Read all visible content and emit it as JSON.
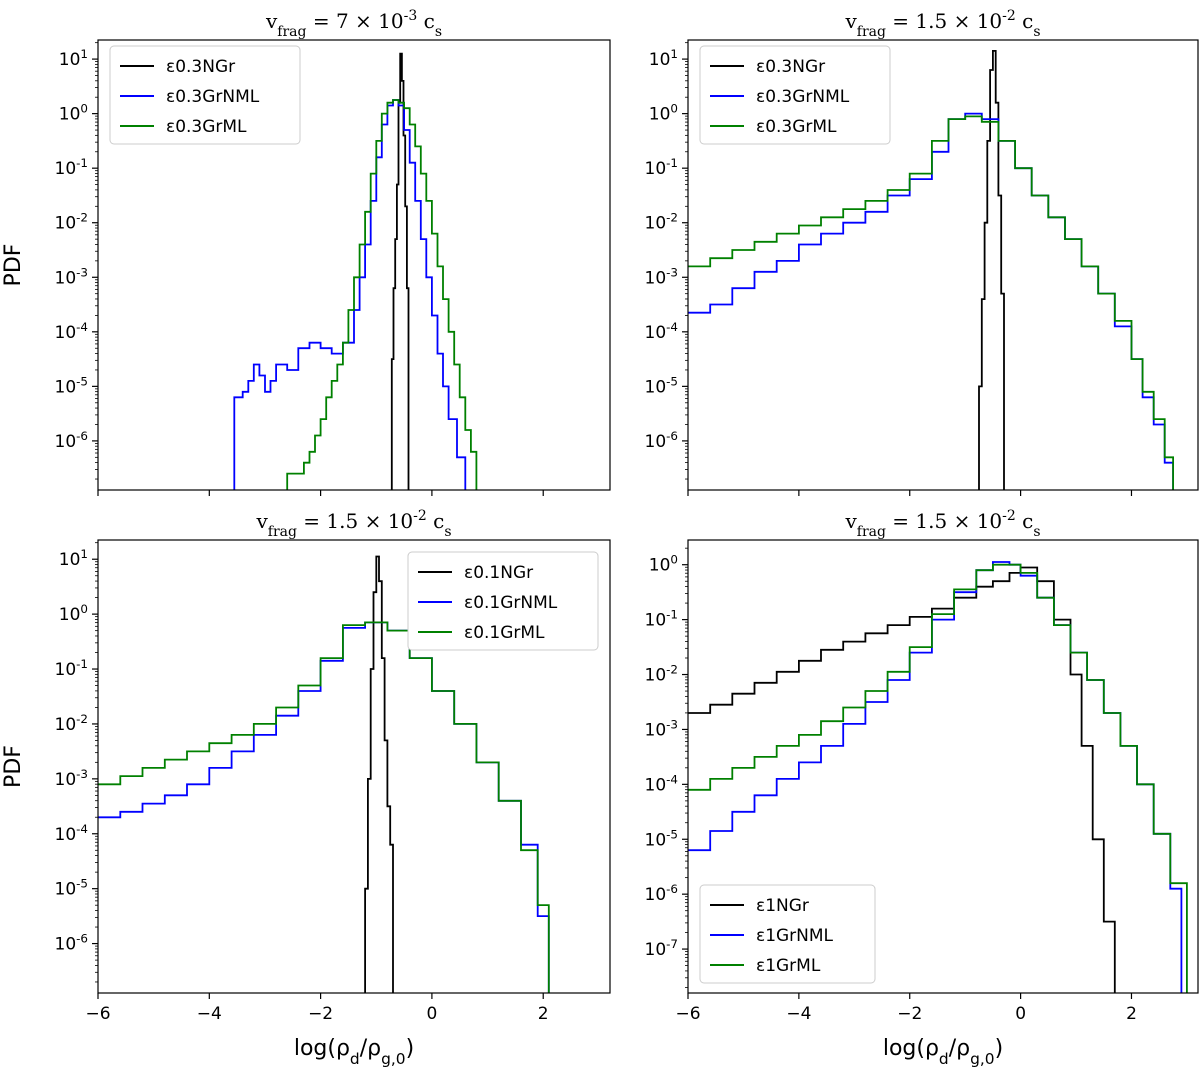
{
  "colors": {
    "black": "#000000",
    "blue": "#0000ff",
    "green": "#008000"
  },
  "chart_data": [
    {
      "type": "line",
      "title": "v_frag = 7 × 10^-3 c_s",
      "xlabel": "",
      "ylabel": "PDF",
      "yscale": "log",
      "xlim": [
        -6,
        3.2
      ],
      "ylim_exp": [
        -6.9,
        1.35
      ],
      "x_ticks": [
        -6,
        -4,
        -2,
        0,
        2
      ],
      "y_tick_labels": [
        "10^1",
        "10^0",
        "10^-1",
        "10^-2",
        "10^-3",
        "10^-4",
        "10^-5",
        "10^-6"
      ],
      "legend_position": "top-left",
      "series": [
        {
          "name": "ε0.3NGr",
          "color": "#000000",
          "x": [
            -0.72,
            -0.72,
            -0.69,
            -0.66,
            -0.63,
            -0.6,
            -0.57,
            -0.54,
            -0.51,
            -0.48,
            -0.45,
            -0.42,
            -0.42
          ],
          "y_exp": [
            -7,
            -4.5,
            -3.2,
            -2.3,
            -1.3,
            0.2,
            1.1,
            0.6,
            -0.4,
            -1.7,
            -3.2,
            -4.7,
            -7
          ]
        },
        {
          "name": "ε0.3GrNML",
          "color": "#0000ff",
          "x": [
            -3.55,
            -3.55,
            -3.4,
            -3.3,
            -3.2,
            -3.1,
            -3,
            -2.9,
            -2.8,
            -2.6,
            -2.4,
            -2.2,
            -2,
            -1.8,
            -1.6,
            -1.4,
            -1.3,
            -1.2,
            -1.1,
            -1,
            -0.9,
            -0.8,
            -0.7,
            -0.6,
            -0.5,
            -0.4,
            -0.3,
            -0.2,
            -0.1,
            0,
            0.1,
            0.2,
            0.3,
            0.45,
            0.6,
            0.6
          ],
          "y_exp": [
            -7,
            -5.2,
            -5.1,
            -4.9,
            -4.6,
            -4.8,
            -5.1,
            -4.9,
            -4.6,
            -4.7,
            -4.3,
            -4.2,
            -4.3,
            -4.4,
            -4.2,
            -3.6,
            -3,
            -2.4,
            -1.6,
            -0.8,
            -0.2,
            0.15,
            0.25,
            0.15,
            -0.3,
            -0.9,
            -1.6,
            -2.3,
            -3,
            -3.7,
            -4.4,
            -5,
            -5.6,
            -6.3,
            -7,
            -7
          ]
        },
        {
          "name": "ε0.3GrML",
          "color": "#008000",
          "x": [
            -2.6,
            -2.6,
            -2.4,
            -2.3,
            -2.2,
            -2.1,
            -2,
            -1.9,
            -1.8,
            -1.7,
            -1.6,
            -1.5,
            -1.4,
            -1.3,
            -1.2,
            -1.1,
            -1,
            -0.9,
            -0.8,
            -0.7,
            -0.6,
            -0.5,
            -0.4,
            -0.3,
            -0.2,
            -0.1,
            0,
            0.1,
            0.2,
            0.3,
            0.4,
            0.5,
            0.6,
            0.7,
            0.8,
            0.8
          ],
          "y_exp": [
            -7,
            -6.6,
            -6.6,
            -6.4,
            -6.2,
            -5.9,
            -5.6,
            -5.2,
            -4.9,
            -4.6,
            -4.2,
            -3.6,
            -3,
            -2.4,
            -1.8,
            -1.1,
            -0.5,
            0,
            0.2,
            0.25,
            0.2,
            0.1,
            -0.2,
            -0.6,
            -1.1,
            -1.6,
            -2.2,
            -2.8,
            -3.4,
            -4,
            -4.6,
            -5.2,
            -5.8,
            -6.2,
            -6.7,
            -7
          ]
        }
      ]
    },
    {
      "type": "line",
      "title": "v_frag = 1.5 × 10^-2 c_s",
      "xlabel": "",
      "ylabel": "",
      "yscale": "log",
      "xlim": [
        -6,
        3.2
      ],
      "ylim_exp": [
        -6.9,
        1.35
      ],
      "x_ticks": [
        -6,
        -4,
        -2,
        0,
        2
      ],
      "y_tick_labels": [
        "10^1",
        "10^0",
        "10^-1",
        "10^-2",
        "10^-3",
        "10^-4",
        "10^-5",
        "10^-6"
      ],
      "legend_position": "top-left",
      "series": [
        {
          "name": "ε0.3NGr",
          "color": "#000000",
          "x": [
            -0.75,
            -0.75,
            -0.7,
            -0.65,
            -0.6,
            -0.55,
            -0.5,
            -0.45,
            -0.4,
            -0.35,
            -0.3,
            -0.3
          ],
          "y_exp": [
            -7,
            -5,
            -3.4,
            -2,
            -0.5,
            0.8,
            1.15,
            0.2,
            -1.5,
            -3.3,
            -5.1,
            -7
          ]
        },
        {
          "name": "ε0.3GrNML",
          "color": "#0000ff",
          "x": [
            -6,
            -5.6,
            -5.2,
            -4.8,
            -4.4,
            -4,
            -3.6,
            -3.2,
            -2.8,
            -2.4,
            -2,
            -1.6,
            -1.3,
            -1,
            -0.7,
            -0.4,
            -0.1,
            0.2,
            0.5,
            0.8,
            1.1,
            1.4,
            1.7,
            2,
            2.2,
            2.4,
            2.6,
            2.75,
            2.75
          ],
          "y_exp": [
            -3.65,
            -3.5,
            -3.2,
            -2.9,
            -2.7,
            -2.4,
            -2.2,
            -2,
            -1.8,
            -1.5,
            -1.2,
            -0.7,
            -0.1,
            0,
            -0.1,
            -0.5,
            -1,
            -1.5,
            -1.9,
            -2.3,
            -2.8,
            -3.3,
            -3.9,
            -4.5,
            -5.2,
            -5.7,
            -6.4,
            -6.6,
            -7
          ]
        },
        {
          "name": "ε0.3GrML",
          "color": "#008000",
          "x": [
            -6,
            -5.6,
            -5.2,
            -4.8,
            -4.4,
            -4,
            -3.6,
            -3.2,
            -2.8,
            -2.4,
            -2,
            -1.6,
            -1.3,
            -1,
            -0.7,
            -0.4,
            -0.1,
            0.2,
            0.5,
            0.8,
            1.1,
            1.4,
            1.7,
            2,
            2.2,
            2.4,
            2.6,
            2.75,
            2.75
          ],
          "y_exp": [
            -2.8,
            -2.65,
            -2.5,
            -2.35,
            -2.2,
            -2.05,
            -1.9,
            -1.75,
            -1.6,
            -1.4,
            -1.1,
            -0.5,
            -0.1,
            -0.05,
            -0.15,
            -0.5,
            -1,
            -1.5,
            -1.9,
            -2.3,
            -2.8,
            -3.3,
            -3.8,
            -4.5,
            -5.1,
            -5.6,
            -6.3,
            -6.6,
            -7
          ]
        }
      ]
    },
    {
      "type": "line",
      "title": "v_frag = 1.5 × 10^-2 c_s",
      "xlabel": "log(ρ_d/ρ_g,0)",
      "ylabel": "PDF",
      "yscale": "log",
      "xlim": [
        -6,
        3.2
      ],
      "ylim_exp": [
        -6.9,
        1.35
      ],
      "x_ticks": [
        -6,
        -4,
        -2,
        0,
        2
      ],
      "y_tick_labels": [
        "10^1",
        "10^0",
        "10^-1",
        "10^-2",
        "10^-3",
        "10^-4",
        "10^-5",
        "10^-6"
      ],
      "legend_position": "top-right",
      "series": [
        {
          "name": "ε0.1NGr",
          "color": "#000000",
          "x": [
            -1.2,
            -1.2,
            -1.15,
            -1.1,
            -1.05,
            -1,
            -0.95,
            -0.9,
            -0.85,
            -0.8,
            -0.75,
            -0.7,
            -0.7
          ],
          "y_exp": [
            -7,
            -5,
            -3,
            -1,
            0.4,
            1.05,
            0.6,
            -0.8,
            -2.3,
            -3.5,
            -4.2,
            -4.3,
            -7
          ]
        },
        {
          "name": "ε0.1GrNML",
          "color": "#0000ff",
          "x": [
            -6,
            -5.6,
            -5.2,
            -4.8,
            -4.4,
            -4,
            -3.6,
            -3.2,
            -2.8,
            -2.4,
            -2,
            -1.6,
            -1.2,
            -0.8,
            -0.4,
            0,
            0.4,
            0.8,
            1.2,
            1.6,
            1.9,
            2.1,
            2.1
          ],
          "y_exp": [
            -3.7,
            -3.6,
            -3.45,
            -3.3,
            -3.1,
            -2.8,
            -2.5,
            -2.2,
            -1.85,
            -1.4,
            -0.85,
            -0.25,
            -0.15,
            -0.3,
            -0.8,
            -1.4,
            -2,
            -2.7,
            -3.4,
            -4.2,
            -5.5,
            -6.6,
            -7
          ]
        },
        {
          "name": "ε0.1GrML",
          "color": "#008000",
          "x": [
            -6,
            -5.6,
            -5.2,
            -4.8,
            -4.4,
            -4,
            -3.6,
            -3.2,
            -2.8,
            -2.4,
            -2,
            -1.6,
            -1.2,
            -0.8,
            -0.4,
            0,
            0.4,
            0.8,
            1.2,
            1.6,
            1.9,
            2.1,
            2.1
          ],
          "y_exp": [
            -3.1,
            -2.95,
            -2.8,
            -2.65,
            -2.5,
            -2.35,
            -2.2,
            -2,
            -1.7,
            -1.3,
            -0.8,
            -0.2,
            -0.15,
            -0.3,
            -0.8,
            -1.4,
            -2,
            -2.7,
            -3.4,
            -4.3,
            -5.3,
            -6.5,
            -7
          ]
        }
      ]
    },
    {
      "type": "line",
      "title": "v_frag = 1.5 × 10^-2 c_s",
      "xlabel": "log(ρ_d/ρ_g,0)",
      "ylabel": "",
      "yscale": "log",
      "xlim": [
        -6,
        3.2
      ],
      "ylim_exp": [
        -7.8,
        0.45
      ],
      "x_ticks": [
        -6,
        -4,
        -2,
        0,
        2
      ],
      "y_tick_labels": [
        "10^0",
        "10^-1",
        "10^-2",
        "10^-3",
        "10^-4",
        "10^-5",
        "10^-6",
        "10^-7"
      ],
      "legend_position": "bottom-left",
      "series": [
        {
          "name": "ε1NGr",
          "color": "#000000",
          "x": [
            -6,
            -5.6,
            -5.2,
            -4.8,
            -4.4,
            -4,
            -3.6,
            -3.2,
            -2.8,
            -2.4,
            -2,
            -1.6,
            -1.2,
            -0.8,
            -0.5,
            -0.2,
            0,
            0.3,
            0.6,
            0.9,
            1.1,
            1.3,
            1.5,
            1.7,
            1.7
          ],
          "y_exp": [
            -2.7,
            -2.55,
            -2.35,
            -2.15,
            -1.95,
            -1.75,
            -1.55,
            -1.4,
            -1.25,
            -1.1,
            -0.95,
            -0.8,
            -0.6,
            -0.4,
            -0.3,
            -0.15,
            -0.05,
            -0.3,
            -1,
            -2,
            -3.3,
            -5,
            -6.5,
            -7.7,
            -8
          ]
        },
        {
          "name": "ε1GrNML",
          "color": "#0000ff",
          "x": [
            -6,
            -5.6,
            -5.2,
            -4.8,
            -4.4,
            -4,
            -3.6,
            -3.2,
            -2.8,
            -2.4,
            -2,
            -1.6,
            -1.2,
            -0.8,
            -0.5,
            -0.2,
            0,
            0.3,
            0.6,
            0.9,
            1.2,
            1.5,
            1.8,
            2.1,
            2.4,
            2.7,
            2.9,
            2.9
          ],
          "y_exp": [
            -5.2,
            -4.85,
            -4.5,
            -4.2,
            -3.9,
            -3.6,
            -3.3,
            -2.9,
            -2.5,
            -2.1,
            -1.6,
            -1,
            -0.5,
            -0.1,
            0.05,
            0,
            -0.2,
            -0.6,
            -1.1,
            -1.6,
            -2.1,
            -2.7,
            -3.3,
            -4,
            -4.9,
            -5.9,
            -7.2,
            -8
          ]
        },
        {
          "name": "ε1GrML",
          "color": "#008000",
          "x": [
            -6,
            -5.6,
            -5.2,
            -4.8,
            -4.4,
            -4,
            -3.6,
            -3.2,
            -2.8,
            -2.4,
            -2,
            -1.6,
            -1.2,
            -0.8,
            -0.5,
            -0.2,
            0,
            0.3,
            0.6,
            0.9,
            1.2,
            1.5,
            1.8,
            2.1,
            2.4,
            2.7,
            3,
            3,
            3
          ],
          "y_exp": [
            -4.1,
            -3.9,
            -3.7,
            -3.5,
            -3.3,
            -3.1,
            -2.85,
            -2.6,
            -2.3,
            -1.95,
            -1.5,
            -0.9,
            -0.45,
            -0.1,
            0,
            0,
            -0.15,
            -0.6,
            -1.1,
            -1.6,
            -2.1,
            -2.7,
            -3.3,
            -4,
            -4.9,
            -5.8,
            -6.8,
            -7.5,
            -8
          ]
        }
      ]
    }
  ]
}
